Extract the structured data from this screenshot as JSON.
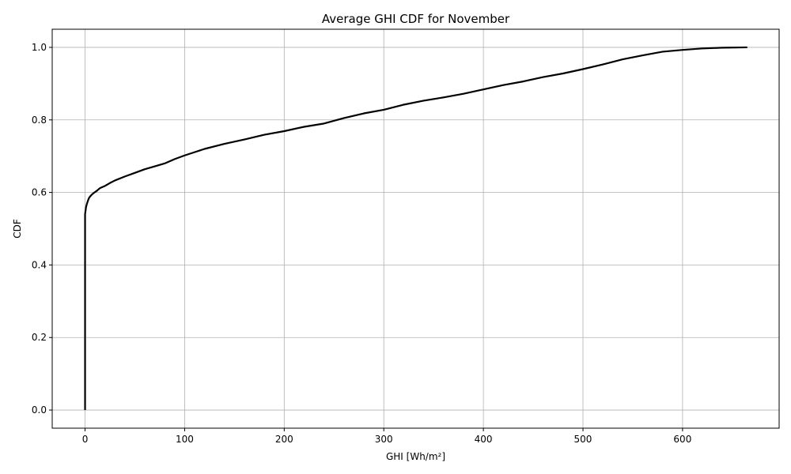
{
  "chart_data": {
    "type": "line",
    "title": "Average GHI CDF for November",
    "xlabel": "GHI [Wh/m²]",
    "ylabel": "CDF",
    "xlim": [
      -33,
      697
    ],
    "ylim": [
      -0.05,
      1.05
    ],
    "xticks": [
      0,
      100,
      200,
      300,
      400,
      500,
      600
    ],
    "xtick_labels": [
      "0",
      "100",
      "200",
      "300",
      "400",
      "500",
      "600"
    ],
    "yticks": [
      0.0,
      0.2,
      0.4,
      0.6,
      0.8,
      1.0
    ],
    "ytick_labels": [
      "0.0",
      "0.2",
      "0.4",
      "0.6",
      "0.8",
      "1.0"
    ],
    "grid": true,
    "line_color": "#000000",
    "grid_color": "#b0b0b0",
    "series": [
      {
        "x": [
          0,
          0,
          0.5,
          1,
          2,
          3,
          4,
          6,
          8,
          10,
          12,
          15,
          20,
          25,
          30,
          40,
          50,
          60,
          70,
          80,
          90,
          100,
          110,
          120,
          140,
          160,
          180,
          200,
          220,
          240,
          260,
          280,
          300,
          320,
          340,
          360,
          380,
          400,
          420,
          440,
          460,
          480,
          500,
          520,
          540,
          560,
          580,
          600,
          620,
          640,
          665
        ],
        "y": [
          0.0,
          0.54,
          0.55,
          0.56,
          0.57,
          0.578,
          0.585,
          0.592,
          0.597,
          0.601,
          0.605,
          0.612,
          0.618,
          0.626,
          0.633,
          0.644,
          0.654,
          0.664,
          0.672,
          0.68,
          0.692,
          0.702,
          0.711,
          0.72,
          0.734,
          0.746,
          0.759,
          0.769,
          0.781,
          0.79,
          0.805,
          0.818,
          0.828,
          0.842,
          0.853,
          0.862,
          0.872,
          0.884,
          0.896,
          0.906,
          0.918,
          0.928,
          0.94,
          0.953,
          0.967,
          0.978,
          0.988,
          0.993,
          0.997,
          0.999,
          1.0
        ]
      }
    ]
  }
}
